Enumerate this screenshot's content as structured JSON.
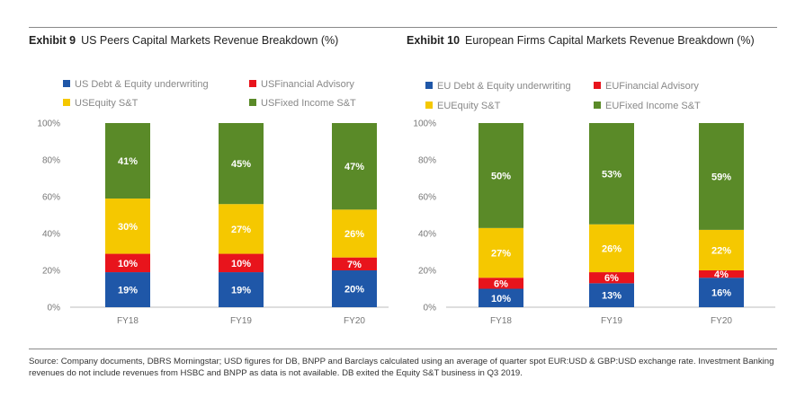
{
  "chart_data": [
    {
      "type": "bar",
      "stacked": true,
      "exhibit_label": "Exhibit 9",
      "title": "US Peers Capital Markets Revenue Breakdown (%)",
      "categories": [
        "FY18",
        "FY19",
        "FY20"
      ],
      "ylim": [
        0,
        100
      ],
      "yticks": [
        "0%",
        "20%",
        "40%",
        "60%",
        "80%",
        "100%"
      ],
      "series": [
        {
          "name": "US Debt & Equity underwriting",
          "color": "#1f57a8",
          "values": [
            19,
            19,
            20
          ],
          "labels": [
            "19%",
            "19%",
            "20%"
          ]
        },
        {
          "name": "USFinancial Advisory",
          "color": "#e8141c",
          "values": [
            10,
            10,
            7
          ],
          "labels": [
            "10%",
            "10%",
            "7%"
          ]
        },
        {
          "name": "USEquity S&T",
          "color": "#f5c800",
          "values": [
            30,
            27,
            26
          ],
          "labels": [
            "30%",
            "27%",
            "26%"
          ]
        },
        {
          "name": "USFixed Income S&T",
          "color": "#5a8a28",
          "values": [
            41,
            45,
            47
          ],
          "labels": [
            "41%",
            "45%",
            "47%"
          ]
        }
      ]
    },
    {
      "type": "bar",
      "stacked": true,
      "exhibit_label": "Exhibit 10",
      "title": "European Firms Capital Markets Revenue Breakdown  (%)",
      "categories": [
        "FY18",
        "FY19",
        "FY20"
      ],
      "ylim": [
        0,
        100
      ],
      "yticks": [
        "0%",
        "20%",
        "40%",
        "60%",
        "80%",
        "100%"
      ],
      "series": [
        {
          "name": "EU Debt & Equity underwriting",
          "color": "#1f57a8",
          "values": [
            10,
            13,
            16
          ],
          "labels": [
            "10%",
            "13%",
            "16%"
          ]
        },
        {
          "name": "EUFinancial Advisory",
          "color": "#e8141c",
          "values": [
            6,
            6,
            4
          ],
          "labels": [
            "6%",
            "6%",
            "4%"
          ]
        },
        {
          "name": "EUEquity S&T",
          "color": "#f5c800",
          "values": [
            27,
            26,
            22
          ],
          "labels": [
            "27%",
            "26%",
            "22%"
          ]
        },
        {
          "name": "EUFixed Income S&T",
          "color": "#5a8a28",
          "values": [
            50,
            53,
            59
          ],
          "labels": [
            "50%",
            "53%",
            "59%"
          ]
        }
      ]
    }
  ],
  "source_note": "Source: Company documents, DBRS Morningstar; USD figures for DB, BNPP and Barclays calculated using an average of quarter spot EUR:USD & GBP:USD exchange rate. Investment Banking revenues do not include revenues from HSBC and BNPP as data is not available. DB exited the Equity S&T business in Q3 2019."
}
